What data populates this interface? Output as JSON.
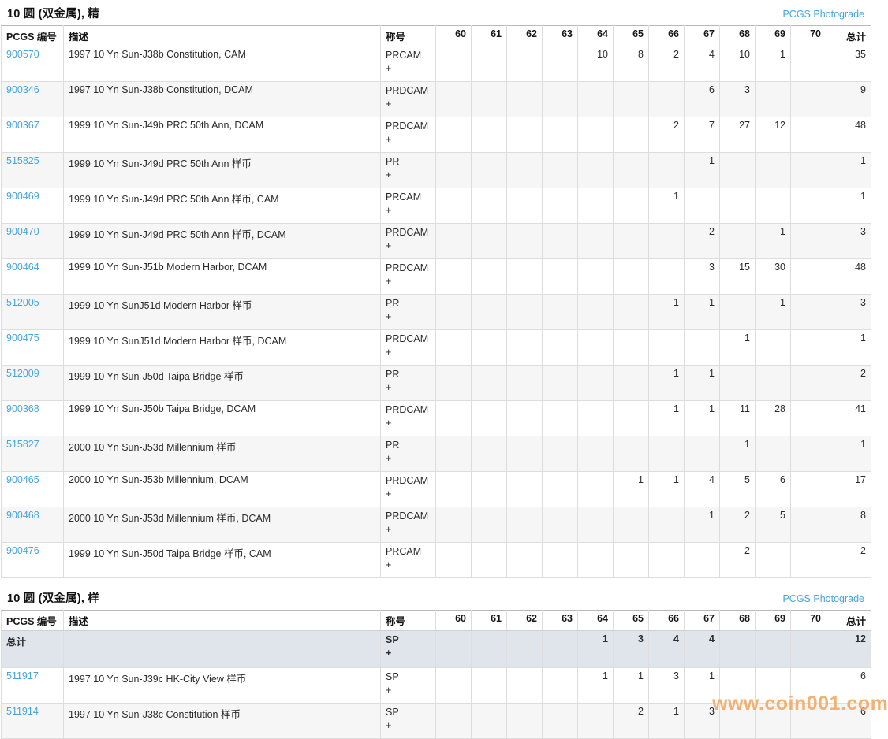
{
  "watermark": "www.coin001.com",
  "photograde_link": "PCGS Photograde",
  "plus_sign": "+",
  "grade_columns": [
    "60",
    "61",
    "62",
    "63",
    "64",
    "65",
    "66",
    "67",
    "68",
    "69",
    "70"
  ],
  "column_headers": {
    "pcgs": "PCGS 编号",
    "description": "描述",
    "designation": "称号",
    "total": "总计"
  },
  "total_row_label": "总计",
  "colors": {
    "link_blue": "#45a4dc",
    "stripe_gray": "#f6f6f6",
    "total_row_bg": "#dfe5ea",
    "watermark_orange": "#f2a964"
  },
  "tables": [
    {
      "title": "10 圆 (双金属), 精",
      "rows": [
        {
          "pcgs": "900570",
          "description": "1997 10 Yn Sun-J38b Constitution, CAM",
          "designation": "PRCAM",
          "grades": {
            "64": "10",
            "65": "8",
            "66": "2",
            "67": "4",
            "68": "10",
            "69": "1"
          },
          "total": "35"
        },
        {
          "pcgs": "900346",
          "description": "1997 10 Yn Sun-J38b Constitution, DCAM",
          "designation": "PRDCAM",
          "grades": {
            "67": "6",
            "68": "3"
          },
          "total": "9"
        },
        {
          "pcgs": "900367",
          "description": "1999 10 Yn Sun-J49b PRC 50th Ann, DCAM",
          "designation": "PRDCAM",
          "grades": {
            "66": "2",
            "67": "7",
            "68": "27",
            "69": "12"
          },
          "total": "48"
        },
        {
          "pcgs": "515825",
          "description": "1999 10 Yn Sun-J49d PRC 50th Ann 样币",
          "designation": "PR",
          "grades": {
            "67": "1"
          },
          "total": "1"
        },
        {
          "pcgs": "900469",
          "description": "1999 10 Yn Sun-J49d PRC 50th Ann 样币, CAM",
          "designation": "PRCAM",
          "grades": {
            "66": "1"
          },
          "total": "1"
        },
        {
          "pcgs": "900470",
          "description": "1999 10 Yn Sun-J49d PRC 50th Ann 样币, DCAM",
          "designation": "PRDCAM",
          "grades": {
            "67": "2",
            "69": "1"
          },
          "total": "3"
        },
        {
          "pcgs": "900464",
          "description": "1999 10 Yn Sun-J51b Modern Harbor, DCAM",
          "designation": "PRDCAM",
          "grades": {
            "67": "3",
            "68": "15",
            "69": "30"
          },
          "total": "48"
        },
        {
          "pcgs": "512005",
          "description": "1999 10 Yn SunJ51d Modern Harbor 样币",
          "designation": "PR",
          "grades": {
            "66": "1",
            "67": "1",
            "69": "1"
          },
          "total": "3"
        },
        {
          "pcgs": "900475",
          "description": "1999 10 Yn SunJ51d Modern Harbor 样币, DCAM",
          "designation": "PRDCAM",
          "grades": {
            "68": "1"
          },
          "total": "1"
        },
        {
          "pcgs": "512009",
          "description": "1999 10 Yn Sun-J50d Taipa Bridge 样币",
          "designation": "PR",
          "grades": {
            "66": "1",
            "67": "1"
          },
          "total": "2"
        },
        {
          "pcgs": "900368",
          "description": "1999 10 Yn Sun-J50b Taipa Bridge, DCAM",
          "designation": "PRDCAM",
          "grades": {
            "66": "1",
            "67": "1",
            "68": "11",
            "69": "28"
          },
          "total": "41"
        },
        {
          "pcgs": "515827",
          "description": "2000 10 Yn Sun-J53d Millennium 样币",
          "designation": "PR",
          "grades": {
            "68": "1"
          },
          "total": "1"
        },
        {
          "pcgs": "900465",
          "description": "2000 10 Yn Sun-J53b Millennium, DCAM",
          "designation": "PRDCAM",
          "grades": {
            "65": "1",
            "66": "1",
            "67": "4",
            "68": "5",
            "69": "6"
          },
          "total": "17"
        },
        {
          "pcgs": "900468",
          "description": "2000 10 Yn Sun-J53d Millennium 样币, DCAM",
          "designation": "PRDCAM",
          "grades": {
            "67": "1",
            "68": "2",
            "69": "5"
          },
          "total": "8"
        },
        {
          "pcgs": "900476",
          "description": "1999 10 Yn Sun-J50d Taipa Bridge 样币, CAM",
          "designation": "PRCAM",
          "grades": {
            "68": "2"
          },
          "total": "2"
        }
      ]
    },
    {
      "title": "10 圆 (双金属), 样",
      "rows": [
        {
          "is_total": true,
          "pcgs": "总计",
          "description": "",
          "designation": "SP",
          "grades": {
            "64": "1",
            "65": "3",
            "66": "4",
            "67": "4"
          },
          "total": "12"
        },
        {
          "pcgs": "511917",
          "description": "1997 10 Yn Sun-J39c HK-City View 样币",
          "designation": "SP",
          "grades": {
            "64": "1",
            "65": "1",
            "66": "3",
            "67": "1"
          },
          "total": "6"
        },
        {
          "pcgs": "511914",
          "description": "1997 10 Yn Sun-J38c Constitution 样币",
          "designation": "SP",
          "grades": {
            "65": "2",
            "66": "1",
            "67": "3"
          },
          "total": "6"
        }
      ]
    }
  ]
}
